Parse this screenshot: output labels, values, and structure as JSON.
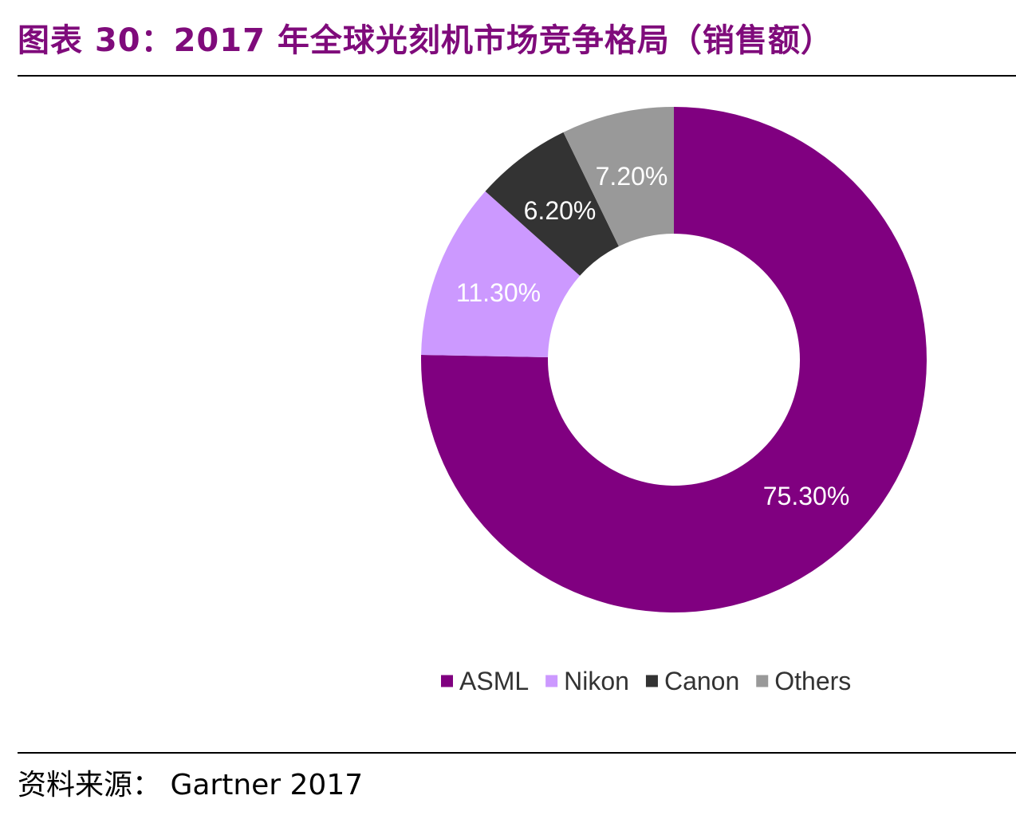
{
  "figure": {
    "title": "图表 30：2017 年全球光刻机市场竞争格局（销售额）",
    "source": "资料来源： Gartner 2017"
  },
  "chart_data": {
    "type": "pie",
    "subtype": "donut",
    "title": "",
    "slices": [
      {
        "name": "ASML",
        "value": 75.3,
        "label": "75.30%",
        "color": "#800080"
      },
      {
        "name": "Nikon",
        "value": 11.3,
        "label": "11.30%",
        "color": "#cc99ff"
      },
      {
        "name": "Canon",
        "value": 6.2,
        "label": "6.20%",
        "color": "#333333"
      },
      {
        "name": "Others",
        "value": 7.2,
        "label": "7.20%",
        "color": "#999999"
      }
    ],
    "legend_position": "bottom",
    "start": "top",
    "direction": "clockwise",
    "label_color": "#ffffff"
  }
}
